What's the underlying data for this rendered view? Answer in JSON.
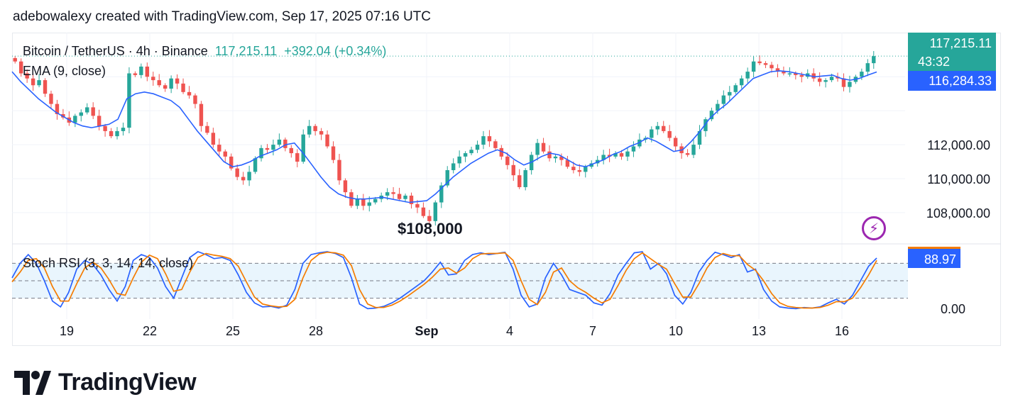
{
  "header": {
    "text": "adebowalexy created with TradingView.com, Sep 17, 2025 07:16 UTC"
  },
  "legend": {
    "symbol": "Bitcoin / TetherUS · 4h · Binance",
    "price": "117,215.11",
    "change": "+392.04 (+0.34%)",
    "ema": "EMA (9, close)",
    "stoch": "Stoch RSI (3, 3, 14, 14, close)"
  },
  "price_tags": {
    "last_price": "117,215.11",
    "countdown": "43:32",
    "ema_value": "116,284.33",
    "stoch_value": "88.97"
  },
  "annotation": "$108,000",
  "logo": {
    "text": "TradingView"
  },
  "icons": {
    "alert": "lightning-bolt-icon"
  },
  "colors": {
    "up": "#26a69a",
    "down": "#ef5350",
    "ema": "#2962ff",
    "stoch_k": "#2962ff",
    "stoch_d": "#f57c00",
    "band": "#e3f2fd"
  },
  "chart_data": [
    {
      "type": "candlestick",
      "title": "Bitcoin / TetherUS · 4h · Binance",
      "x_ticks": [
        "19",
        "22",
        "25",
        "28",
        "Sep",
        "4",
        "7",
        "10",
        "13",
        "16"
      ],
      "y_ticks": [
        "112,000.00",
        "110,000.00",
        "108,000.00"
      ],
      "ylim": [
        106200,
        118600
      ],
      "series": [
        {
          "name": "BTC/USDT close (approx.)",
          "values": [
            116900,
            116200,
            115900,
            115500,
            115800,
            115000,
            114400,
            113800,
            113600,
            113300,
            113700,
            113900,
            114200,
            113700,
            113100,
            112800,
            112500,
            112800,
            113000,
            116200,
            116100,
            116600,
            116000,
            115800,
            115500,
            115300,
            115900,
            115600,
            115100,
            114900,
            114400,
            113100,
            112700,
            112000,
            111600,
            111300,
            110600,
            110100,
            109900,
            110400,
            111200,
            111800,
            111700,
            112000,
            112300,
            111800,
            111500,
            111000,
            112600,
            113100,
            112800,
            112600,
            111900,
            111100,
            109900,
            109200,
            108400,
            108800,
            108400,
            108600,
            108800,
            109000,
            109200,
            109100,
            108800,
            109000,
            108500,
            108300,
            107800,
            107500,
            108600,
            109600,
            110500,
            110900,
            111300,
            111500,
            111700,
            112000,
            112500,
            112200,
            111800,
            111300,
            110800,
            110200,
            109500,
            110500,
            111400,
            112100,
            111600,
            111200,
            111300,
            111100,
            110700,
            110500,
            110400,
            110700,
            110900,
            111100,
            111400,
            111300,
            111500,
            111300,
            111600,
            111900,
            112300,
            112400,
            112900,
            113100,
            112800,
            112400,
            111900,
            111500,
            111400,
            112000,
            112800,
            113500,
            114000,
            114400,
            114900,
            115100,
            115500,
            115900,
            116300,
            116900,
            116800,
            116700,
            116500,
            116300,
            116200,
            116200,
            116100,
            116000,
            116200,
            115900,
            115700,
            115800,
            116000,
            115900,
            115400,
            115700,
            116000,
            116300,
            116800,
            117215
          ]
        },
        {
          "name": "EMA (9, close)",
          "values": [
            116300,
            115700,
            115200,
            114700,
            114300,
            113900,
            113600,
            113300,
            113100,
            113000,
            113100,
            113200,
            113500,
            114700,
            115000,
            115100,
            115000,
            114800,
            114600,
            114200,
            113500,
            112800,
            112200,
            111600,
            111000,
            110700,
            110800,
            111000,
            111300,
            111500,
            111700,
            112000,
            112100,
            111500,
            110800,
            110100,
            109500,
            109100,
            108900,
            108800,
            108800,
            108850,
            108900,
            108800,
            108700,
            108600,
            108650,
            108700,
            109100,
            109600,
            110100,
            110500,
            110900,
            111200,
            111500,
            111700,
            111500,
            111100,
            110800,
            111000,
            111300,
            111500,
            111400,
            111100,
            110800,
            110700,
            110900,
            111100,
            111400,
            111600,
            111900,
            112100,
            112400,
            112200,
            111900,
            111600,
            111700,
            112200,
            112800,
            113500,
            114000,
            114400,
            114900,
            115400,
            115900,
            116100,
            116300,
            116350,
            116300,
            116200,
            116100,
            116000,
            116050,
            116100,
            115900,
            115800,
            115900,
            116100,
            116284
          ]
        }
      ]
    },
    {
      "type": "line",
      "title": "Stoch RSI (3, 3, 14, 14, close)",
      "y_ticks": [
        "0.00"
      ],
      "ylim": [
        0,
        100
      ],
      "bands": [
        20,
        50,
        80
      ],
      "series": [
        {
          "name": "K",
          "values": [
            55,
            80,
            95,
            80,
            50,
            15,
            5,
            30,
            70,
            85,
            78,
            60,
            35,
            15,
            40,
            85,
            95,
            90,
            72,
            40,
            20,
            55,
            90,
            100,
            95,
            88,
            90,
            85,
            60,
            30,
            12,
            5,
            6,
            3,
            8,
            35,
            80,
            95,
            98,
            100,
            97,
            90,
            55,
            10,
            2,
            3,
            6,
            12,
            20,
            30,
            40,
            50,
            65,
            82,
            60,
            62,
            85,
            95,
            98,
            95,
            97,
            99,
            70,
            25,
            5,
            10,
            55,
            80,
            60,
            35,
            30,
            25,
            12,
            8,
            28,
            60,
            80,
            98,
            100,
            70,
            80,
            62,
            25,
            10,
            30,
            65,
            85,
            99,
            95,
            90,
            95,
            65,
            70,
            35,
            15,
            5,
            3,
            2,
            4,
            3,
            5,
            12,
            18,
            10,
            25,
            50,
            75,
            89
          ]
        },
        {
          "name": "D",
          "values": [
            48,
            65,
            85,
            88,
            72,
            40,
            15,
            15,
            45,
            72,
            82,
            72,
            52,
            28,
            25,
            55,
            82,
            94,
            88,
            62,
            32,
            35,
            65,
            90,
            97,
            94,
            92,
            88,
            75,
            48,
            22,
            10,
            7,
            5,
            6,
            18,
            55,
            85,
            96,
            99,
            98,
            94,
            76,
            35,
            10,
            4,
            4,
            8,
            15,
            24,
            34,
            44,
            56,
            70,
            72,
            63,
            72,
            88,
            96,
            97,
            97,
            98,
            85,
            50,
            18,
            9,
            30,
            65,
            72,
            50,
            38,
            30,
            20,
            12,
            18,
            42,
            68,
            88,
            98,
            88,
            78,
            70,
            45,
            22,
            22,
            45,
            72,
            90,
            97,
            93,
            93,
            78,
            68,
            50,
            28,
            12,
            6,
            4,
            3,
            3,
            4,
            8,
            14,
            14,
            20,
            38,
            60,
            85
          ]
        }
      ]
    }
  ]
}
